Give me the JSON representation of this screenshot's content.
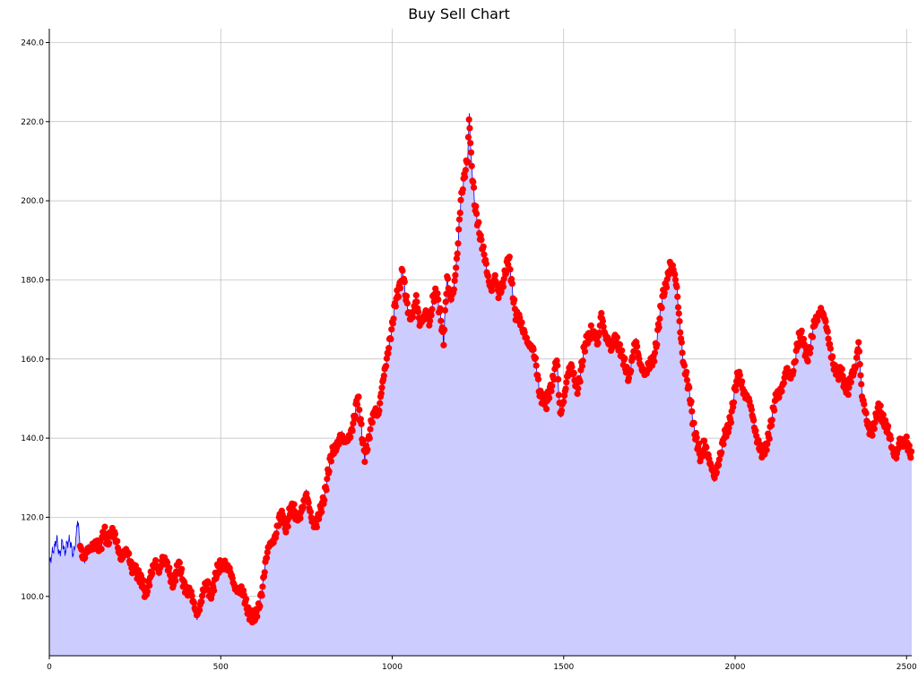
{
  "chart_data": {
    "type": "area",
    "title": "Buy Sell Chart",
    "xlabel": "",
    "ylabel": "",
    "xlim": [
      0,
      2515
    ],
    "ylim": [
      85,
      243.5
    ],
    "x_ticks": [
      0,
      500,
      1000,
      1500,
      2000,
      2500
    ],
    "x_tick_labels": [
      "0",
      "500",
      "1000",
      "1500",
      "2000",
      "2500"
    ],
    "y_ticks": [
      100,
      120,
      140,
      160,
      180,
      200,
      220,
      240
    ],
    "y_tick_labels": [
      "100.0",
      "120.0",
      "140.0",
      "160.0",
      "180.0",
      "200.0",
      "220.0",
      "240.0"
    ],
    "grid": true,
    "colors": {
      "line": "#0000ee",
      "fill": "#ccccff",
      "markers": "#ff0000",
      "grid": "#bbbbbb"
    },
    "series": [
      {
        "values_anchor": [
          [
            0,
            108
          ],
          [
            8,
            110
          ],
          [
            15,
            112
          ],
          [
            22,
            115
          ],
          [
            30,
            111
          ],
          [
            38,
            114
          ],
          [
            45,
            110
          ],
          [
            52,
            113
          ],
          [
            60,
            115
          ],
          [
            70,
            111
          ],
          [
            78,
            114
          ],
          [
            82,
            119
          ],
          [
            87,
            115
          ],
          [
            92,
            112
          ],
          [
            100,
            110
          ],
          [
            110,
            112
          ],
          [
            120,
            111
          ],
          [
            130,
            113
          ],
          [
            140,
            114
          ],
          [
            150,
            112
          ],
          [
            160,
            116
          ],
          [
            170,
            114
          ],
          [
            180,
            117
          ],
          [
            190,
            115
          ],
          [
            200,
            112
          ],
          [
            210,
            110
          ],
          [
            220,
            112
          ],
          [
            230,
            110
          ],
          [
            240,
            107
          ],
          [
            250,
            108
          ],
          [
            260,
            105
          ],
          [
            270,
            103
          ],
          [
            280,
            101
          ],
          [
            290,
            104
          ],
          [
            300,
            106
          ],
          [
            310,
            108
          ],
          [
            320,
            107
          ],
          [
            330,
            110
          ],
          [
            340,
            108
          ],
          [
            350,
            106
          ],
          [
            360,
            104
          ],
          [
            370,
            106
          ],
          [
            380,
            107
          ],
          [
            390,
            104
          ],
          [
            400,
            102
          ],
          [
            410,
            101
          ],
          [
            420,
            98
          ],
          [
            430,
            96
          ],
          [
            440,
            98
          ],
          [
            450,
            101
          ],
          [
            460,
            103
          ],
          [
            470,
            101
          ],
          [
            480,
            103
          ],
          [
            490,
            106
          ],
          [
            500,
            108
          ],
          [
            510,
            109
          ],
          [
            520,
            107
          ],
          [
            530,
            105
          ],
          [
            540,
            103
          ],
          [
            550,
            102
          ],
          [
            560,
            101
          ],
          [
            570,
            99
          ],
          [
            580,
            97
          ],
          [
            590,
            95
          ],
          [
            600,
            94
          ],
          [
            610,
            97
          ],
          [
            620,
            102
          ],
          [
            630,
            108
          ],
          [
            640,
            112
          ],
          [
            650,
            114
          ],
          [
            660,
            116
          ],
          [
            670,
            119
          ],
          [
            680,
            120
          ],
          [
            690,
            118
          ],
          [
            700,
            121
          ],
          [
            710,
            122
          ],
          [
            720,
            120
          ],
          [
            730,
            121
          ],
          [
            740,
            123
          ],
          [
            750,
            125
          ],
          [
            760,
            122
          ],
          [
            770,
            119
          ],
          [
            780,
            118
          ],
          [
            790,
            121
          ],
          [
            800,
            125
          ],
          [
            810,
            130
          ],
          [
            820,
            134
          ],
          [
            830,
            137
          ],
          [
            840,
            139
          ],
          [
            850,
            141
          ],
          [
            860,
            138
          ],
          [
            870,
            140
          ],
          [
            880,
            142
          ],
          [
            890,
            145
          ],
          [
            900,
            150
          ],
          [
            910,
            143
          ],
          [
            920,
            136
          ],
          [
            930,
            138
          ],
          [
            940,
            144
          ],
          [
            950,
            148
          ],
          [
            960,
            146
          ],
          [
            970,
            152
          ],
          [
            980,
            158
          ],
          [
            990,
            164
          ],
          [
            1000,
            168
          ],
          [
            1010,
            174
          ],
          [
            1020,
            178
          ],
          [
            1030,
            183
          ],
          [
            1040,
            175
          ],
          [
            1050,
            170
          ],
          [
            1060,
            172
          ],
          [
            1070,
            176
          ],
          [
            1080,
            168
          ],
          [
            1090,
            170
          ],
          [
            1100,
            173
          ],
          [
            1110,
            169
          ],
          [
            1120,
            175
          ],
          [
            1130,
            177
          ],
          [
            1140,
            172
          ],
          [
            1150,
            164
          ],
          [
            1160,
            180
          ],
          [
            1170,
            176
          ],
          [
            1180,
            178
          ],
          [
            1190,
            186
          ],
          [
            1200,
            200
          ],
          [
            1210,
            207
          ],
          [
            1220,
            211
          ],
          [
            1225,
            221
          ],
          [
            1230,
            210
          ],
          [
            1240,
            200
          ],
          [
            1250,
            195
          ],
          [
            1260,
            189
          ],
          [
            1270,
            185
          ],
          [
            1280,
            181
          ],
          [
            1290,
            178
          ],
          [
            1300,
            180
          ],
          [
            1310,
            176
          ],
          [
            1320,
            179
          ],
          [
            1330,
            182
          ],
          [
            1340,
            185
          ],
          [
            1350,
            178
          ],
          [
            1360,
            172
          ],
          [
            1370,
            170
          ],
          [
            1380,
            167
          ],
          [
            1390,
            166
          ],
          [
            1400,
            164
          ],
          [
            1410,
            162
          ],
          [
            1420,
            158
          ],
          [
            1430,
            152
          ],
          [
            1440,
            150
          ],
          [
            1450,
            148
          ],
          [
            1460,
            152
          ],
          [
            1470,
            156
          ],
          [
            1480,
            160
          ],
          [
            1490,
            145
          ],
          [
            1500,
            150
          ],
          [
            1510,
            156
          ],
          [
            1520,
            158
          ],
          [
            1530,
            155
          ],
          [
            1540,
            153
          ],
          [
            1550,
            157
          ],
          [
            1560,
            162
          ],
          [
            1570,
            165
          ],
          [
            1580,
            168
          ],
          [
            1590,
            166
          ],
          [
            1600,
            163
          ],
          [
            1610,
            172
          ],
          [
            1620,
            167
          ],
          [
            1630,
            164
          ],
          [
            1640,
            162
          ],
          [
            1650,
            166
          ],
          [
            1660,
            164
          ],
          [
            1670,
            160
          ],
          [
            1680,
            158
          ],
          [
            1690,
            156
          ],
          [
            1700,
            160
          ],
          [
            1710,
            164
          ],
          [
            1720,
            160
          ],
          [
            1730,
            158
          ],
          [
            1740,
            156
          ],
          [
            1750,
            158
          ],
          [
            1760,
            160
          ],
          [
            1770,
            164
          ],
          [
            1780,
            170
          ],
          [
            1790,
            176
          ],
          [
            1800,
            180
          ],
          [
            1810,
            184
          ],
          [
            1820,
            182
          ],
          [
            1830,
            178
          ],
          [
            1840,
            168
          ],
          [
            1850,
            158
          ],
          [
            1860,
            154
          ],
          [
            1870,
            150
          ],
          [
            1880,
            143
          ],
          [
            1890,
            138
          ],
          [
            1900,
            134
          ],
          [
            1910,
            140
          ],
          [
            1920,
            136
          ],
          [
            1930,
            132
          ],
          [
            1940,
            130
          ],
          [
            1950,
            134
          ],
          [
            1960,
            137
          ],
          [
            1970,
            140
          ],
          [
            1980,
            143
          ],
          [
            1990,
            147
          ],
          [
            2000,
            152
          ],
          [
            2010,
            156
          ],
          [
            2020,
            154
          ],
          [
            2030,
            151
          ],
          [
            2040,
            149
          ],
          [
            2050,
            146
          ],
          [
            2060,
            142
          ],
          [
            2070,
            138
          ],
          [
            2080,
            135
          ],
          [
            2090,
            138
          ],
          [
            2100,
            142
          ],
          [
            2110,
            146
          ],
          [
            2120,
            150
          ],
          [
            2130,
            152
          ],
          [
            2140,
            154
          ],
          [
            2150,
            157
          ],
          [
            2160,
            155
          ],
          [
            2170,
            158
          ],
          [
            2180,
            163
          ],
          [
            2190,
            166
          ],
          [
            2200,
            164
          ],
          [
            2210,
            161
          ],
          [
            2220,
            163
          ],
          [
            2230,
            168
          ],
          [
            2240,
            171
          ],
          [
            2250,
            173
          ],
          [
            2260,
            170
          ],
          [
            2270,
            166
          ],
          [
            2280,
            162
          ],
          [
            2290,
            158
          ],
          [
            2300,
            155
          ],
          [
            2310,
            157
          ],
          [
            2320,
            154
          ],
          [
            2330,
            152
          ],
          [
            2340,
            155
          ],
          [
            2350,
            158
          ],
          [
            2360,
            165
          ],
          [
            2370,
            150
          ],
          [
            2380,
            146
          ],
          [
            2390,
            143
          ],
          [
            2400,
            142
          ],
          [
            2410,
            144
          ],
          [
            2420,
            148
          ],
          [
            2430,
            146
          ],
          [
            2440,
            143
          ],
          [
            2450,
            140
          ],
          [
            2460,
            137
          ],
          [
            2470,
            136
          ],
          [
            2480,
            139
          ],
          [
            2490,
            138
          ],
          [
            2500,
            140
          ],
          [
            2510,
            137
          ],
          [
            2515,
            135
          ]
        ]
      }
    ],
    "marker_start_x": 90
  }
}
